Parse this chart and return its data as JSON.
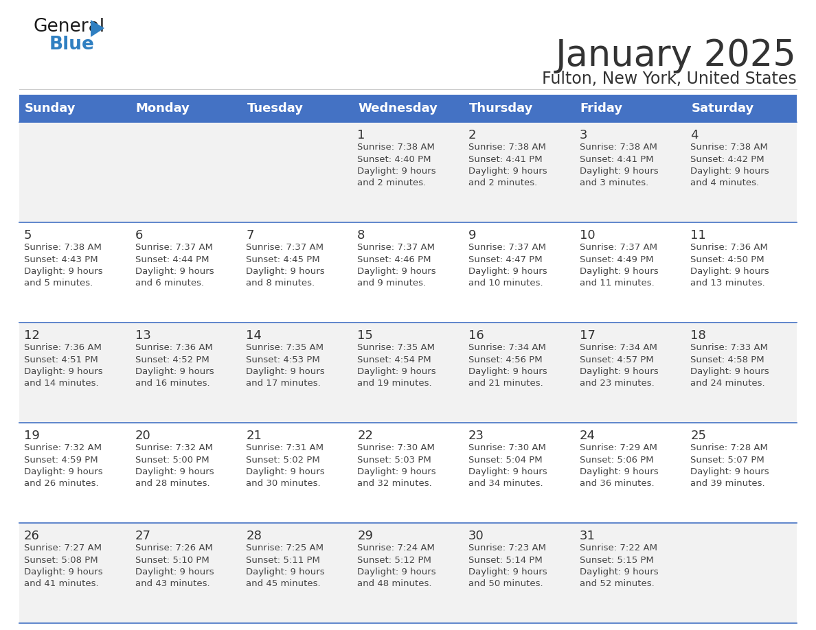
{
  "title": "January 2025",
  "subtitle": "Fulton, New York, United States",
  "header_bg_color": "#4472C4",
  "header_text_color": "#FFFFFF",
  "day_names": [
    "Sunday",
    "Monday",
    "Tuesday",
    "Wednesday",
    "Thursday",
    "Friday",
    "Saturday"
  ],
  "row_bg_colors": [
    "#F2F2F2",
    "#FFFFFF",
    "#F2F2F2",
    "#FFFFFF",
    "#F2F2F2"
  ],
  "grid_line_color": "#4472C4",
  "day_num_color": "#333333",
  "info_text_color": "#444444",
  "calendar": [
    [
      {
        "day": "",
        "info": ""
      },
      {
        "day": "",
        "info": ""
      },
      {
        "day": "",
        "info": ""
      },
      {
        "day": "1",
        "info": "Sunrise: 7:38 AM\nSunset: 4:40 PM\nDaylight: 9 hours\nand 2 minutes."
      },
      {
        "day": "2",
        "info": "Sunrise: 7:38 AM\nSunset: 4:41 PM\nDaylight: 9 hours\nand 2 minutes."
      },
      {
        "day": "3",
        "info": "Sunrise: 7:38 AM\nSunset: 4:41 PM\nDaylight: 9 hours\nand 3 minutes."
      },
      {
        "day": "4",
        "info": "Sunrise: 7:38 AM\nSunset: 4:42 PM\nDaylight: 9 hours\nand 4 minutes."
      }
    ],
    [
      {
        "day": "5",
        "info": "Sunrise: 7:38 AM\nSunset: 4:43 PM\nDaylight: 9 hours\nand 5 minutes."
      },
      {
        "day": "6",
        "info": "Sunrise: 7:37 AM\nSunset: 4:44 PM\nDaylight: 9 hours\nand 6 minutes."
      },
      {
        "day": "7",
        "info": "Sunrise: 7:37 AM\nSunset: 4:45 PM\nDaylight: 9 hours\nand 8 minutes."
      },
      {
        "day": "8",
        "info": "Sunrise: 7:37 AM\nSunset: 4:46 PM\nDaylight: 9 hours\nand 9 minutes."
      },
      {
        "day": "9",
        "info": "Sunrise: 7:37 AM\nSunset: 4:47 PM\nDaylight: 9 hours\nand 10 minutes."
      },
      {
        "day": "10",
        "info": "Sunrise: 7:37 AM\nSunset: 4:49 PM\nDaylight: 9 hours\nand 11 minutes."
      },
      {
        "day": "11",
        "info": "Sunrise: 7:36 AM\nSunset: 4:50 PM\nDaylight: 9 hours\nand 13 minutes."
      }
    ],
    [
      {
        "day": "12",
        "info": "Sunrise: 7:36 AM\nSunset: 4:51 PM\nDaylight: 9 hours\nand 14 minutes."
      },
      {
        "day": "13",
        "info": "Sunrise: 7:36 AM\nSunset: 4:52 PM\nDaylight: 9 hours\nand 16 minutes."
      },
      {
        "day": "14",
        "info": "Sunrise: 7:35 AM\nSunset: 4:53 PM\nDaylight: 9 hours\nand 17 minutes."
      },
      {
        "day": "15",
        "info": "Sunrise: 7:35 AM\nSunset: 4:54 PM\nDaylight: 9 hours\nand 19 minutes."
      },
      {
        "day": "16",
        "info": "Sunrise: 7:34 AM\nSunset: 4:56 PM\nDaylight: 9 hours\nand 21 minutes."
      },
      {
        "day": "17",
        "info": "Sunrise: 7:34 AM\nSunset: 4:57 PM\nDaylight: 9 hours\nand 23 minutes."
      },
      {
        "day": "18",
        "info": "Sunrise: 7:33 AM\nSunset: 4:58 PM\nDaylight: 9 hours\nand 24 minutes."
      }
    ],
    [
      {
        "day": "19",
        "info": "Sunrise: 7:32 AM\nSunset: 4:59 PM\nDaylight: 9 hours\nand 26 minutes."
      },
      {
        "day": "20",
        "info": "Sunrise: 7:32 AM\nSunset: 5:00 PM\nDaylight: 9 hours\nand 28 minutes."
      },
      {
        "day": "21",
        "info": "Sunrise: 7:31 AM\nSunset: 5:02 PM\nDaylight: 9 hours\nand 30 minutes."
      },
      {
        "day": "22",
        "info": "Sunrise: 7:30 AM\nSunset: 5:03 PM\nDaylight: 9 hours\nand 32 minutes."
      },
      {
        "day": "23",
        "info": "Sunrise: 7:30 AM\nSunset: 5:04 PM\nDaylight: 9 hours\nand 34 minutes."
      },
      {
        "day": "24",
        "info": "Sunrise: 7:29 AM\nSunset: 5:06 PM\nDaylight: 9 hours\nand 36 minutes."
      },
      {
        "day": "25",
        "info": "Sunrise: 7:28 AM\nSunset: 5:07 PM\nDaylight: 9 hours\nand 39 minutes."
      }
    ],
    [
      {
        "day": "26",
        "info": "Sunrise: 7:27 AM\nSunset: 5:08 PM\nDaylight: 9 hours\nand 41 minutes."
      },
      {
        "day": "27",
        "info": "Sunrise: 7:26 AM\nSunset: 5:10 PM\nDaylight: 9 hours\nand 43 minutes."
      },
      {
        "day": "28",
        "info": "Sunrise: 7:25 AM\nSunset: 5:11 PM\nDaylight: 9 hours\nand 45 minutes."
      },
      {
        "day": "29",
        "info": "Sunrise: 7:24 AM\nSunset: 5:12 PM\nDaylight: 9 hours\nand 48 minutes."
      },
      {
        "day": "30",
        "info": "Sunrise: 7:23 AM\nSunset: 5:14 PM\nDaylight: 9 hours\nand 50 minutes."
      },
      {
        "day": "31",
        "info": "Sunrise: 7:22 AM\nSunset: 5:15 PM\nDaylight: 9 hours\nand 52 minutes."
      },
      {
        "day": "",
        "info": ""
      }
    ]
  ],
  "logo_color_general": "#1a1a1a",
  "logo_color_blue": "#2f7fc1",
  "logo_triangle_color": "#2f7fc1",
  "title_fontsize": 38,
  "subtitle_fontsize": 17,
  "header_fontsize": 13,
  "day_num_fontsize": 13,
  "info_fontsize": 9.5
}
